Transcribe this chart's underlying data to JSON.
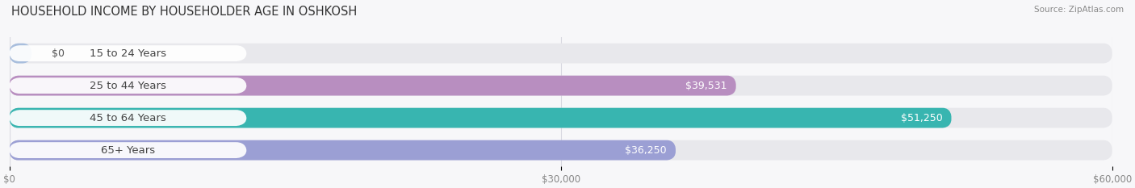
{
  "title": "HOUSEHOLD INCOME BY HOUSEHOLDER AGE IN OSHKOSH",
  "source": "Source: ZipAtlas.com",
  "categories": [
    "15 to 24 Years",
    "25 to 44 Years",
    "45 to 64 Years",
    "65+ Years"
  ],
  "values": [
    0,
    39531,
    51250,
    36250
  ],
  "value_labels": [
    "$0",
    "$39,531",
    "$51,250",
    "$36,250"
  ],
  "bar_colors": [
    "#a8bedd",
    "#b88ec0",
    "#38b5b0",
    "#9b9fd4"
  ],
  "bar_bg_color": "#e8e8ec",
  "max_value": 60000,
  "xtick_values": [
    0,
    30000,
    60000
  ],
  "xtick_labels": [
    "$0",
    "$30,000",
    "$60,000"
  ],
  "background_color": "#f7f7f9",
  "title_fontsize": 10.5,
  "source_fontsize": 7.5,
  "label_fontsize": 9.5,
  "value_fontsize": 9,
  "bar_height": 0.62,
  "bar_label_color_inside": "#ffffff",
  "bar_label_color_outside": "#555555",
  "pill_bg": "#ffffff",
  "pill_text_color": "#444444",
  "grid_color": "#d8d8e0",
  "axis_label_color": "#888888"
}
